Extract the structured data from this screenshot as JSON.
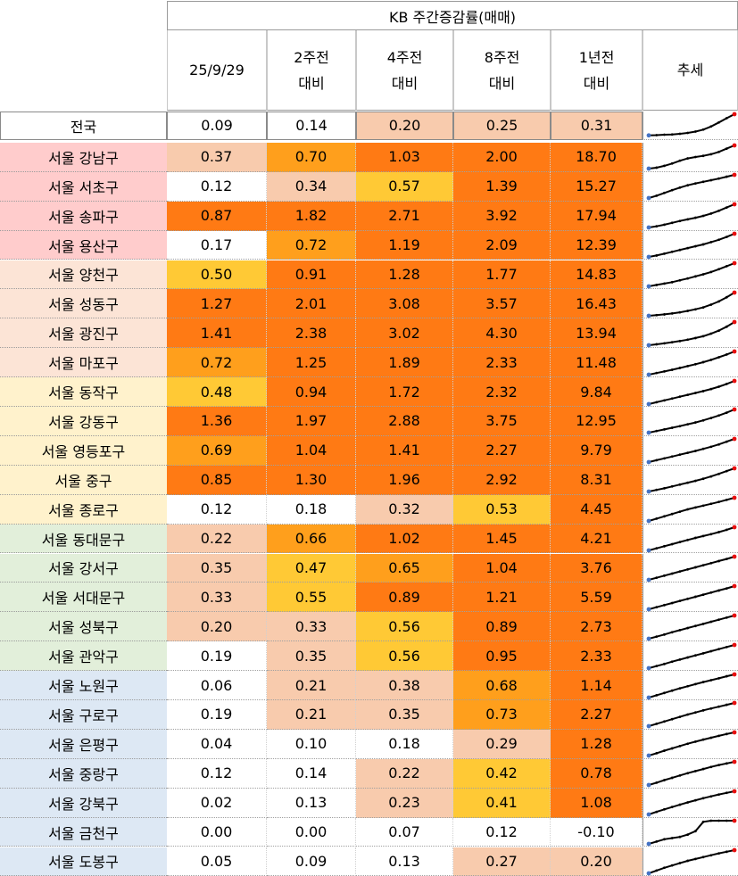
{
  "header": {
    "group_title": "KB 주간증감률(매매)",
    "columns": [
      {
        "line1": "25/9/29",
        "line2": ""
      },
      {
        "line1": "2주전",
        "line2": "대비"
      },
      {
        "line1": "4주전",
        "line2": "대비"
      },
      {
        "line1": "8주전",
        "line2": "대비"
      },
      {
        "line1": "1년전",
        "line2": "대비"
      }
    ],
    "trend_label": "추세"
  },
  "colors": {
    "white": "#ffffff",
    "peach": "#f8cbad",
    "yellow": "#ffc935",
    "orange_mid": "#ff9f1c",
    "orange_deep": "#ff7a14",
    "group_pink": "#ffcccc",
    "group_apricot": "#fce4d6",
    "group_cream": "#fff2cc",
    "group_green": "#e2efda",
    "group_blue": "#dde8f4",
    "sparkline": "#000000",
    "sparkline_start": "#4472c4",
    "sparkline_end": "#e81010"
  },
  "rows": [
    {
      "region": "전국",
      "group": "national",
      "values": [
        "0.09",
        "0.14",
        "0.20",
        "0.25",
        "0.31"
      ],
      "fills": [
        "white",
        "white",
        "peach",
        "peach",
        "peach"
      ],
      "trend": [
        0.05,
        0.06,
        0.08,
        0.09,
        0.12,
        0.16,
        0.22,
        0.31,
        0.45,
        0.63,
        0.82,
        1.0
      ]
    },
    {
      "region": "서울 강남구",
      "group": "pink",
      "values": [
        "0.37",
        "0.70",
        "1.03",
        "2.00",
        "18.70"
      ],
      "fills": [
        "peach",
        "orange_mid",
        "orange_deep",
        "orange_deep",
        "orange_deep"
      ],
      "trend": [
        0.0,
        0.04,
        0.12,
        0.22,
        0.34,
        0.44,
        0.5,
        0.55,
        0.62,
        0.72,
        0.86,
        1.0
      ]
    },
    {
      "region": "서울 서초구",
      "group": "pink",
      "values": [
        "0.12",
        "0.34",
        "0.57",
        "1.39",
        "15.27"
      ],
      "fills": [
        "white",
        "peach",
        "yellow",
        "orange_deep",
        "orange_deep"
      ],
      "trend": [
        0.0,
        0.1,
        0.22,
        0.34,
        0.45,
        0.55,
        0.63,
        0.7,
        0.77,
        0.84,
        0.92,
        1.0
      ]
    },
    {
      "region": "서울 송파구",
      "group": "pink",
      "values": [
        "0.87",
        "1.82",
        "2.71",
        "3.92",
        "17.94"
      ],
      "fills": [
        "orange_deep",
        "orange_deep",
        "orange_deep",
        "orange_deep",
        "orange_deep"
      ],
      "trend": [
        0.0,
        0.05,
        0.12,
        0.2,
        0.28,
        0.35,
        0.42,
        0.5,
        0.6,
        0.72,
        0.86,
        1.0
      ]
    },
    {
      "region": "서울 용산구",
      "group": "pink",
      "values": [
        "0.17",
        "0.72",
        "1.19",
        "2.09",
        "12.39"
      ],
      "fills": [
        "white",
        "orange_mid",
        "orange_deep",
        "orange_deep",
        "orange_deep"
      ],
      "trend": [
        0.0,
        0.06,
        0.14,
        0.22,
        0.3,
        0.38,
        0.46,
        0.54,
        0.64,
        0.74,
        0.86,
        1.0
      ]
    },
    {
      "region": "서울 양천구",
      "group": "apricot",
      "values": [
        "0.50",
        "0.91",
        "1.28",
        "1.77",
        "14.83"
      ],
      "fills": [
        "yellow",
        "orange_deep",
        "orange_deep",
        "orange_deep",
        "orange_deep"
      ],
      "trend": [
        0.0,
        0.06,
        0.12,
        0.18,
        0.26,
        0.34,
        0.43,
        0.52,
        0.62,
        0.74,
        0.87,
        1.0
      ]
    },
    {
      "region": "서울 성동구",
      "group": "apricot",
      "values": [
        "1.27",
        "2.01",
        "3.08",
        "3.57",
        "16.43"
      ],
      "fills": [
        "orange_deep",
        "orange_deep",
        "orange_deep",
        "orange_deep",
        "orange_deep"
      ],
      "trend": [
        0.0,
        0.03,
        0.06,
        0.1,
        0.15,
        0.21,
        0.28,
        0.36,
        0.48,
        0.62,
        0.8,
        1.0
      ]
    },
    {
      "region": "서울 광진구",
      "group": "apricot",
      "values": [
        "1.41",
        "2.38",
        "3.02",
        "4.30",
        "13.94"
      ],
      "fills": [
        "orange_deep",
        "orange_deep",
        "orange_deep",
        "orange_deep",
        "orange_deep"
      ],
      "trend": [
        0.0,
        0.04,
        0.08,
        0.13,
        0.18,
        0.24,
        0.31,
        0.39,
        0.5,
        0.63,
        0.8,
        1.0
      ]
    },
    {
      "region": "서울 마포구",
      "group": "apricot",
      "values": [
        "0.72",
        "1.25",
        "1.89",
        "2.33",
        "11.48"
      ],
      "fills": [
        "orange_mid",
        "orange_deep",
        "orange_deep",
        "orange_deep",
        "orange_deep"
      ],
      "trend": [
        0.0,
        0.07,
        0.14,
        0.21,
        0.29,
        0.37,
        0.45,
        0.54,
        0.64,
        0.75,
        0.87,
        1.0
      ]
    },
    {
      "region": "서울 동작구",
      "group": "cream",
      "values": [
        "0.48",
        "0.94",
        "1.72",
        "2.32",
        "9.84"
      ],
      "fills": [
        "yellow",
        "orange_deep",
        "orange_deep",
        "orange_deep",
        "orange_deep"
      ],
      "trend": [
        0.0,
        0.08,
        0.16,
        0.24,
        0.32,
        0.4,
        0.48,
        0.56,
        0.65,
        0.75,
        0.87,
        1.0
      ]
    },
    {
      "region": "서울 강동구",
      "group": "cream",
      "values": [
        "1.36",
        "1.97",
        "2.88",
        "3.75",
        "12.95"
      ],
      "fills": [
        "orange_deep",
        "orange_deep",
        "orange_deep",
        "orange_deep",
        "orange_deep"
      ],
      "trend": [
        0.0,
        0.07,
        0.14,
        0.21,
        0.28,
        0.36,
        0.44,
        0.53,
        0.63,
        0.74,
        0.86,
        1.0
      ]
    },
    {
      "region": "서울 영등포구",
      "group": "cream",
      "values": [
        "0.69",
        "1.04",
        "1.41",
        "2.27",
        "9.79"
      ],
      "fills": [
        "orange_mid",
        "orange_deep",
        "orange_deep",
        "orange_deep",
        "orange_deep"
      ],
      "trend": [
        0.0,
        0.08,
        0.16,
        0.24,
        0.32,
        0.4,
        0.48,
        0.57,
        0.66,
        0.76,
        0.88,
        1.0
      ]
    },
    {
      "region": "서울 중구",
      "group": "cream",
      "values": [
        "0.85",
        "1.30",
        "1.96",
        "2.92",
        "8.31"
      ],
      "fills": [
        "orange_deep",
        "orange_deep",
        "orange_deep",
        "orange_deep",
        "orange_deep"
      ],
      "trend": [
        0.0,
        0.07,
        0.14,
        0.22,
        0.3,
        0.38,
        0.46,
        0.55,
        0.65,
        0.76,
        0.88,
        1.0
      ]
    },
    {
      "region": "서울 종로구",
      "group": "cream",
      "values": [
        "0.12",
        "0.18",
        "0.32",
        "0.53",
        "4.45"
      ],
      "fills": [
        "white",
        "white",
        "peach",
        "yellow",
        "orange_deep"
      ],
      "trend": [
        0.0,
        0.1,
        0.2,
        0.3,
        0.4,
        0.5,
        0.58,
        0.66,
        0.74,
        0.82,
        0.91,
        1.0
      ]
    },
    {
      "region": "서울 동대문구",
      "group": "green",
      "values": [
        "0.22",
        "0.66",
        "1.02",
        "1.45",
        "4.21"
      ],
      "fills": [
        "peach",
        "orange_mid",
        "orange_deep",
        "orange_deep",
        "orange_deep"
      ],
      "trend": [
        0.0,
        0.09,
        0.18,
        0.27,
        0.36,
        0.45,
        0.54,
        0.62,
        0.7,
        0.79,
        0.89,
        1.0
      ]
    },
    {
      "region": "서울 강서구",
      "group": "green",
      "values": [
        "0.35",
        "0.47",
        "0.65",
        "1.04",
        "3.76"
      ],
      "fills": [
        "peach",
        "yellow",
        "orange_mid",
        "orange_deep",
        "orange_deep"
      ],
      "trend": [
        0.0,
        0.09,
        0.18,
        0.27,
        0.36,
        0.45,
        0.54,
        0.63,
        0.72,
        0.81,
        0.9,
        1.0
      ]
    },
    {
      "region": "서울 서대문구",
      "group": "green",
      "values": [
        "0.33",
        "0.55",
        "0.89",
        "1.21",
        "5.59"
      ],
      "fills": [
        "peach",
        "yellow",
        "orange_deep",
        "orange_deep",
        "orange_deep"
      ],
      "trend": [
        0.0,
        0.09,
        0.18,
        0.27,
        0.36,
        0.45,
        0.54,
        0.63,
        0.72,
        0.81,
        0.9,
        1.0
      ]
    },
    {
      "region": "서울 성북구",
      "group": "green",
      "values": [
        "0.20",
        "0.33",
        "0.56",
        "0.89",
        "2.73"
      ],
      "fills": [
        "peach",
        "peach",
        "yellow",
        "orange_deep",
        "orange_deep"
      ],
      "trend": [
        0.0,
        0.09,
        0.18,
        0.28,
        0.37,
        0.46,
        0.55,
        0.64,
        0.73,
        0.82,
        0.91,
        1.0
      ]
    },
    {
      "region": "서울 관악구",
      "group": "green",
      "values": [
        "0.19",
        "0.35",
        "0.56",
        "0.95",
        "2.33"
      ],
      "fills": [
        "white",
        "peach",
        "yellow",
        "orange_deep",
        "orange_deep"
      ],
      "trend": [
        0.0,
        0.09,
        0.18,
        0.28,
        0.37,
        0.46,
        0.55,
        0.64,
        0.73,
        0.82,
        0.91,
        1.0
      ]
    },
    {
      "region": "서울 노원구",
      "group": "blue",
      "values": [
        "0.06",
        "0.21",
        "0.38",
        "0.68",
        "1.14"
      ],
      "fills": [
        "white",
        "peach",
        "peach",
        "orange_mid",
        "orange_deep"
      ],
      "trend": [
        0.0,
        0.1,
        0.2,
        0.3,
        0.4,
        0.49,
        0.58,
        0.67,
        0.75,
        0.83,
        0.92,
        1.0
      ]
    },
    {
      "region": "서울 구로구",
      "group": "blue",
      "values": [
        "0.19",
        "0.21",
        "0.35",
        "0.73",
        "2.27"
      ],
      "fills": [
        "white",
        "peach",
        "peach",
        "orange_mid",
        "orange_deep"
      ],
      "trend": [
        0.0,
        0.1,
        0.2,
        0.3,
        0.4,
        0.5,
        0.59,
        0.68,
        0.76,
        0.84,
        0.92,
        1.0
      ]
    },
    {
      "region": "서울 은평구",
      "group": "blue",
      "values": [
        "0.04",
        "0.10",
        "0.18",
        "0.29",
        "1.28"
      ],
      "fills": [
        "white",
        "white",
        "white",
        "peach",
        "orange_deep"
      ],
      "trend": [
        0.0,
        0.1,
        0.21,
        0.31,
        0.41,
        0.51,
        0.6,
        0.69,
        0.77,
        0.85,
        0.93,
        1.0
      ]
    },
    {
      "region": "서울 중랑구",
      "group": "blue",
      "values": [
        "0.12",
        "0.14",
        "0.22",
        "0.42",
        "0.78"
      ],
      "fills": [
        "white",
        "white",
        "peach",
        "yellow",
        "orange_deep"
      ],
      "trend": [
        0.0,
        0.1,
        0.21,
        0.31,
        0.41,
        0.51,
        0.6,
        0.69,
        0.78,
        0.86,
        0.93,
        1.0
      ]
    },
    {
      "region": "서울 강북구",
      "group": "blue",
      "values": [
        "0.02",
        "0.13",
        "0.23",
        "0.41",
        "1.08"
      ],
      "fills": [
        "white",
        "white",
        "peach",
        "yellow",
        "orange_deep"
      ],
      "trend": [
        0.0,
        0.11,
        0.22,
        0.32,
        0.42,
        0.52,
        0.61,
        0.7,
        0.78,
        0.86,
        0.93,
        1.0
      ]
    },
    {
      "region": "서울 금천구",
      "group": "blue",
      "values": [
        "0.00",
        "0.00",
        "0.07",
        "0.12",
        "-0.10"
      ],
      "fills": [
        "white",
        "white",
        "white",
        "white",
        "white"
      ],
      "trend": [
        0.0,
        0.1,
        0.2,
        0.25,
        0.3,
        0.4,
        0.55,
        0.95,
        1.0,
        1.0,
        1.0,
        1.0
      ]
    },
    {
      "region": "서울 도봉구",
      "group": "blue",
      "values": [
        "0.05",
        "0.09",
        "0.13",
        "0.27",
        "0.20"
      ],
      "fills": [
        "white",
        "white",
        "white",
        "peach",
        "peach"
      ],
      "trend": [
        0.0,
        0.12,
        0.24,
        0.34,
        0.44,
        0.54,
        0.62,
        0.7,
        0.78,
        0.86,
        0.93,
        1.0
      ]
    }
  ]
}
